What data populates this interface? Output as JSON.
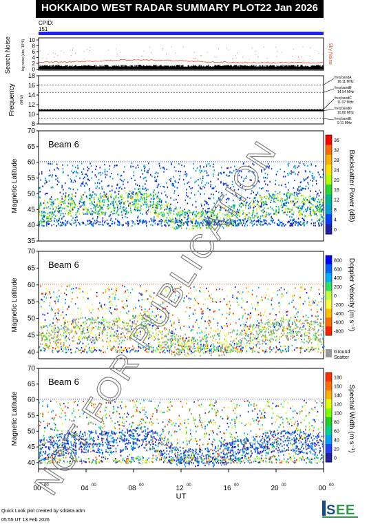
{
  "header": {
    "title": "HOKKAIDO WEST RADAR SUMMARY PLOT",
    "date": "22 Jan 2026"
  },
  "cpid": {
    "label": "CPID:",
    "value": "151"
  },
  "search_noise": {
    "ylabel_main": "Search Noise",
    "ylabel_sub": "log noise (abs, 10^6)",
    "ticks": [
      "10",
      "8",
      "6",
      "4",
      "2",
      "0"
    ],
    "legend": "Sky Noise"
  },
  "frequency": {
    "ylabel_main": "Frequency",
    "ylabel_sub": "(MHz)",
    "ticks": [
      "18",
      "16",
      "14",
      "12",
      "10",
      "8"
    ],
    "bands": [
      {
        "name": "freq bandA",
        "value": "16.11 MHz"
      },
      {
        "name": "freq bandB",
        "value": "14.54 MHz"
      },
      {
        "name": "freq bandC",
        "value": "11.07 MHz"
      },
      {
        "name": "freq bandD",
        "value": "10.80 MHz"
      },
      {
        "name": "freq bandE",
        "value": "9.11 MHz"
      }
    ]
  },
  "panels": [
    {
      "beam_label": "Beam  6",
      "ylabel": "Magnetic Latitude",
      "yticks": [
        "70",
        "65",
        "60",
        "55",
        "50",
        "45",
        "40",
        "35"
      ],
      "cbar_label": "Backscatter Power (dB)",
      "cbar_ticks": [
        "36",
        "32",
        "28",
        "24",
        "20",
        "16",
        "12",
        "8",
        "4",
        "0"
      ]
    },
    {
      "beam_label": "Beam  6",
      "ylabel": "Magnetic Latitude",
      "yticks": [
        "70",
        "65",
        "60",
        "55",
        "50",
        "45",
        "40"
      ],
      "cbar_label": "Doppler Velocity (m s⁻¹)",
      "cbar_ticks": [
        "800",
        "600",
        "400",
        "200",
        "0",
        "-200",
        "-400",
        "-600",
        "-800"
      ],
      "ground_label_1": "Ground",
      "ground_label_2": "Scatter"
    },
    {
      "beam_label": "Beam  6",
      "ylabel": "Magnetic Latitude",
      "yticks": [
        "70",
        "65",
        "60",
        "55",
        "50",
        "45",
        "40"
      ],
      "cbar_label": "Spectral Width (m s⁻¹)",
      "cbar_ticks": [
        "180",
        "160",
        "140",
        "120",
        "100",
        "80",
        "60",
        "40",
        "20",
        "0"
      ]
    }
  ],
  "xaxis": {
    "label": "UT",
    "ticks": [
      "00",
      "04",
      "08",
      "12",
      "16",
      "20",
      "00"
    ],
    "tick_sup": "00"
  },
  "watermark": "NOT FOR PUBLICATION",
  "credits": {
    "line1": "Quick Look plot created by sddata.adm",
    "line2": "05:55 UT 13 Feb 2026"
  },
  "logo": "ISEE",
  "colors": {
    "header_bg": "#000000",
    "cpid_bar": "#2222ee",
    "noise_line": "#e0502a"
  },
  "chart_data": {
    "type": "heatmap",
    "x_range_hours": [
      0,
      24
    ],
    "y_range_deg": [
      35,
      70
    ],
    "beam": 6,
    "search_noise_ylim": [
      0,
      10
    ],
    "frequency_ylim": [
      8,
      18
    ],
    "frequency_band_values_mhz": [
      16.11,
      14.54,
      11.07,
      10.8,
      9.11
    ],
    "power_cbar_range_db": [
      0,
      36
    ],
    "velocity_cbar_range": [
      -800,
      800
    ],
    "width_cbar_range": [
      0,
      180
    ]
  }
}
